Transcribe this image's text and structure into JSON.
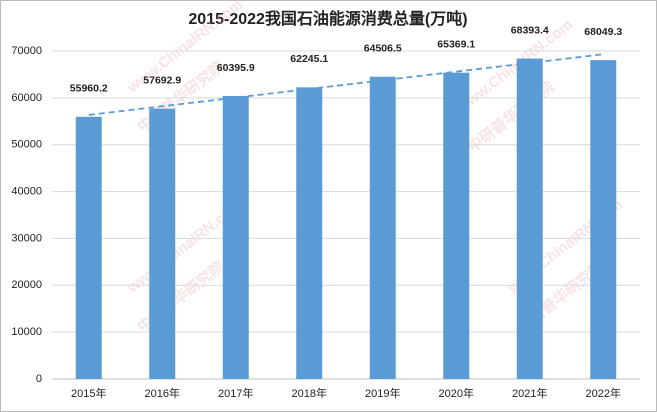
{
  "chart_data": {
    "type": "bar",
    "title": "2015-2022我国石油能源消费总量(万吨)",
    "categories": [
      "2015年",
      "2016年",
      "2017年",
      "2018年",
      "2019年",
      "2020年",
      "2021年",
      "2022年"
    ],
    "values": [
      55960.2,
      57692.9,
      60395.9,
      62245.1,
      64506.5,
      65369.1,
      68393.4,
      68049.3
    ],
    "color": "#5b9bd5",
    "trendline": true,
    "trendline_color": "#5b9bd5",
    "ylim": [
      0,
      70000
    ],
    "yticks": [
      0,
      10000,
      20000,
      30000,
      40000,
      50000,
      60000,
      70000
    ],
    "grid": true,
    "watermark": [
      "www.ChinaIRN.com",
      "中研普华研究院"
    ]
  }
}
